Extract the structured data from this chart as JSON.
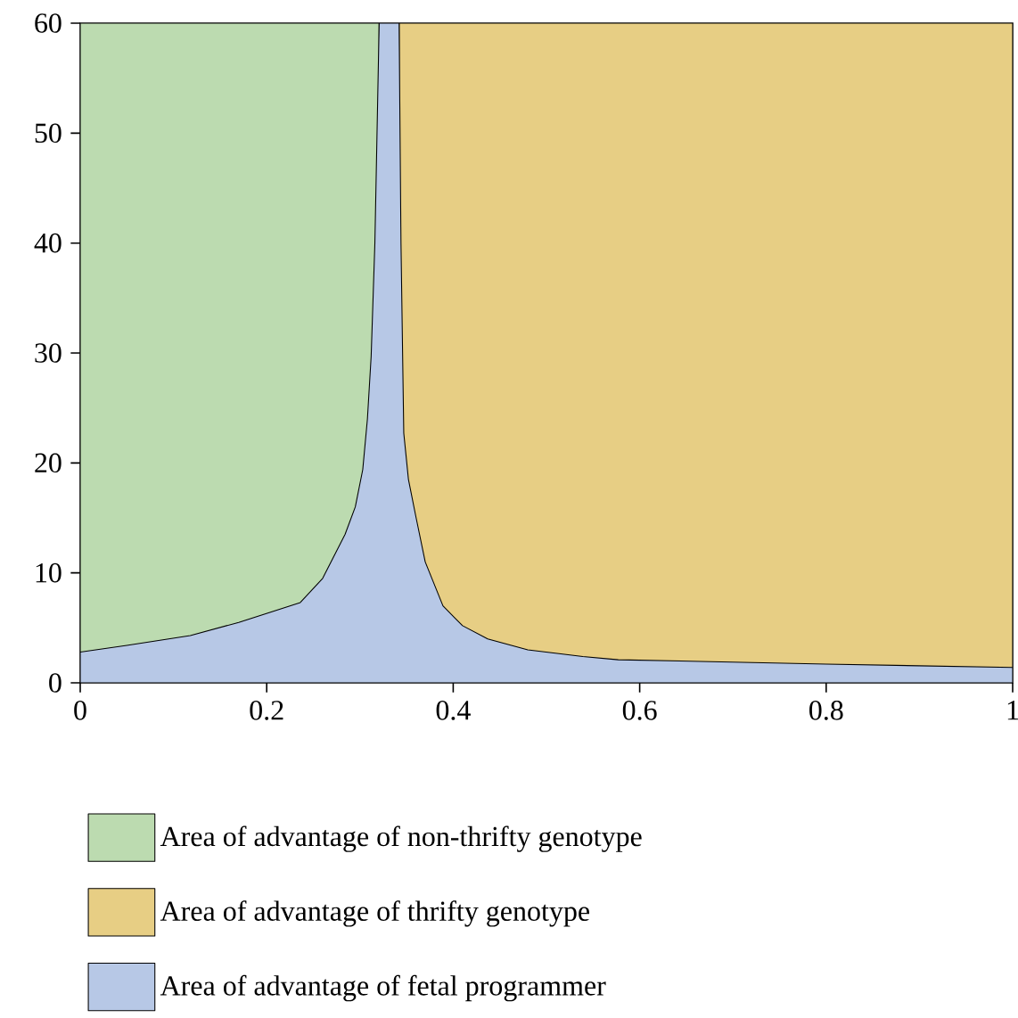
{
  "chart_data": {
    "type": "area",
    "xlim": [
      0,
      1
    ],
    "ylim": [
      0,
      60
    ],
    "xticks": [
      0,
      0.2,
      0.4,
      0.6,
      0.8,
      1
    ],
    "yticks": [
      0,
      10,
      20,
      30,
      40,
      50,
      60
    ],
    "legend": "bottom",
    "series": [
      {
        "name": "Area of advantage of non-thrifty genotype",
        "color": "#bcdbb0",
        "x": [
          0,
          0.3206
        ],
        "values": [
          60,
          60
        ]
      },
      {
        "name": "Area of advantage of thrifty genotype",
        "color": "#e7ce84",
        "x": [
          0.342,
          1
        ],
        "values": [
          60,
          60
        ]
      },
      {
        "name": "Area of advantage of fetal programmer",
        "color": "#b7c8e6",
        "x": [
          0,
          0.05,
          0.118,
          0.17,
          0.236,
          0.26,
          0.284,
          0.295,
          0.303,
          0.308,
          0.312,
          0.316,
          0.3206,
          0.342,
          0.344,
          0.347,
          0.352,
          0.36,
          0.37,
          0.389,
          0.41,
          0.437,
          0.48,
          0.539,
          0.577,
          0.8,
          1
        ],
        "values": [
          2.8,
          3.4,
          4.3,
          5.5,
          7.3,
          9.5,
          13.5,
          16,
          19.4,
          24,
          29.7,
          40,
          60,
          60,
          40,
          22.7,
          18.5,
          15.1,
          11,
          7.0,
          5.2,
          4.0,
          3.0,
          2.4,
          2.1,
          1.7,
          1.4
        ]
      }
    ]
  }
}
